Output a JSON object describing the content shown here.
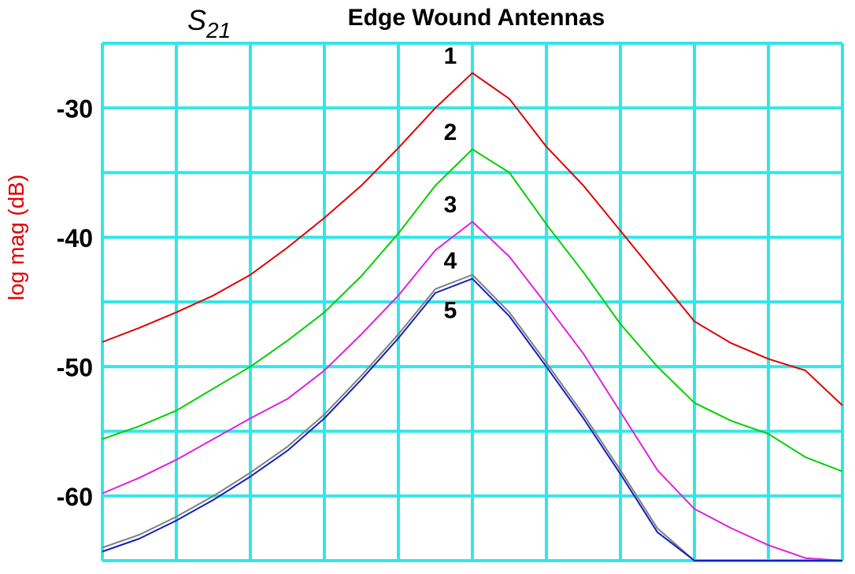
{
  "chart_data": {
    "type": "line",
    "title": "Edge Wound Antennas",
    "parameter": {
      "symbol": "S",
      "subscript": "21"
    },
    "ylabel": "log mag (dB)",
    "ylabel_color": "#e00000",
    "grid": true,
    "grid_color": "#33e6e6",
    "xlim": [
      0,
      10
    ],
    "ylim": [
      -65,
      -25
    ],
    "x_divisions": 10,
    "y_divisions": 8,
    "y_ticks": [
      -30,
      -40,
      -50,
      -60
    ],
    "y_tick_labels": [
      "-30",
      "-40",
      "-50",
      "-60"
    ],
    "series": [
      {
        "name": "1",
        "color": "#e00000",
        "x": [
          0,
          0.5,
          1,
          1.5,
          2,
          2.5,
          3,
          3.5,
          4,
          4.5,
          5,
          5.5,
          6,
          6.5,
          7,
          7.5,
          8,
          8.5,
          9,
          9.5,
          10
        ],
        "y": [
          -48.1,
          -47.0,
          -45.8,
          -44.5,
          -42.9,
          -40.8,
          -38.5,
          -36.0,
          -33.1,
          -30.0,
          -27.3,
          -29.3,
          -33.0,
          -36.0,
          -39.5,
          -43.0,
          -46.5,
          -48.2,
          -49.4,
          -50.3,
          -53.0
        ]
      },
      {
        "name": "2",
        "color": "#00d000",
        "x": [
          0,
          0.5,
          1,
          1.5,
          2,
          2.5,
          3,
          3.5,
          4,
          4.5,
          5,
          5.5,
          6,
          6.5,
          7,
          7.5,
          8,
          8.5,
          9,
          9.5,
          10
        ],
        "y": [
          -55.6,
          -54.6,
          -53.4,
          -51.7,
          -50.0,
          -48.0,
          -45.8,
          -43.0,
          -39.7,
          -36.0,
          -33.2,
          -35.0,
          -39.0,
          -42.7,
          -46.7,
          -50.0,
          -52.8,
          -54.2,
          -55.2,
          -57.0,
          -58.1
        ]
      },
      {
        "name": "3",
        "color": "#e020e0",
        "x": [
          0,
          0.5,
          1,
          1.5,
          2,
          2.5,
          3,
          3.5,
          4,
          4.5,
          5,
          5.5,
          6,
          6.5,
          7,
          7.5,
          8,
          8.5,
          9,
          9.5,
          10
        ],
        "y": [
          -59.8,
          -58.6,
          -57.2,
          -55.6,
          -54.0,
          -52.5,
          -50.3,
          -47.5,
          -44.5,
          -41.0,
          -38.8,
          -41.5,
          -45.2,
          -49.0,
          -53.5,
          -58.0,
          -61.0,
          -62.5,
          -63.8,
          -64.8,
          -65.0
        ]
      },
      {
        "name": "4",
        "color": "#808080",
        "x": [
          0,
          0.5,
          1,
          1.5,
          2,
          2.5,
          3,
          3.5,
          4,
          4.5,
          5,
          5.5,
          6,
          6.5,
          7,
          7.5,
          8,
          8.5,
          9,
          9.5,
          10
        ],
        "y": [
          -64.0,
          -63.0,
          -61.6,
          -60.0,
          -58.2,
          -56.2,
          -53.7,
          -50.7,
          -47.5,
          -44.0,
          -42.9,
          -45.8,
          -49.7,
          -53.7,
          -58.0,
          -62.5,
          -65.0,
          -65.0,
          -65.0,
          -65.0,
          -65.0
        ]
      },
      {
        "name": "5",
        "color": "#1020c0",
        "x": [
          0,
          0.5,
          1,
          1.5,
          2,
          2.5,
          3,
          3.5,
          4,
          4.5,
          5,
          5.5,
          6,
          6.5,
          7,
          7.5,
          8,
          8.5,
          9,
          9.5,
          10
        ],
        "y": [
          -64.3,
          -63.3,
          -61.9,
          -60.3,
          -58.5,
          -56.5,
          -54.0,
          -51.0,
          -47.8,
          -44.3,
          -43.2,
          -46.1,
          -50.0,
          -54.0,
          -58.3,
          -62.8,
          -65.0,
          -65.0,
          -65.0,
          -65.0,
          -65.0
        ]
      }
    ]
  }
}
